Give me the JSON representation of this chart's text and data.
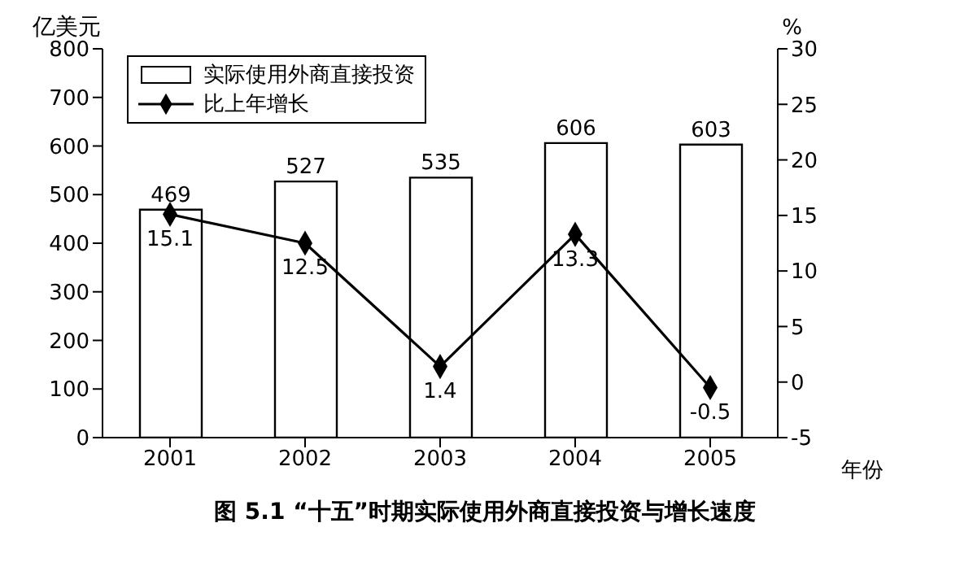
{
  "chart_data": {
    "type": "bar",
    "title": "图 5.1 “十五”时期实际使用外商直接投资与增长速度",
    "xlabel": "年份",
    "ylabel": "亿美元",
    "y2label": "%",
    "categories": [
      "2001",
      "2002",
      "2003",
      "2004",
      "2005"
    ],
    "series": [
      {
        "name": "实际使用外商直接投资",
        "color": "#ffffff",
        "values": [
          469,
          527,
          535,
          606,
          603
        ]
      },
      {
        "name": "比上年增长",
        "type": "line",
        "axis": "y2",
        "color": "#000000",
        "marker": "diamond",
        "values": [
          15.1,
          12.5,
          1.4,
          13.3,
          -0.5
        ]
      }
    ],
    "ylim": [
      0,
      800
    ],
    "yticks": [
      0,
      100,
      200,
      300,
      400,
      500,
      600,
      700,
      800
    ],
    "y2lim": [
      -5,
      30
    ],
    "y2ticks": [
      -5,
      0,
      5,
      10,
      15,
      20,
      25,
      30
    ],
    "data_labels": true,
    "legend": "top left",
    "grid": false
  }
}
